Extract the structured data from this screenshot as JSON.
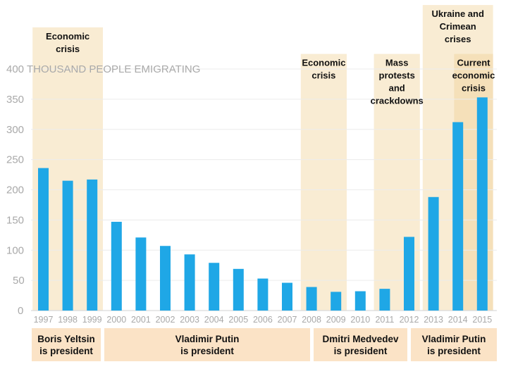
{
  "chart_data": {
    "type": "bar",
    "title": "",
    "ylabel": "THOUSAND PEOPLE EMIGRATING",
    "xlabel": "",
    "ylim": [
      0,
      400
    ],
    "yticks": [
      0,
      50,
      100,
      150,
      200,
      250,
      300,
      350,
      400
    ],
    "grid": true,
    "categories": [
      "1997",
      "1998",
      "1999",
      "2000",
      "2001",
      "2002",
      "2003",
      "2004",
      "2005",
      "2006",
      "2007",
      "2008",
      "2009",
      "2010",
      "2011",
      "2012",
      "2013",
      "2014",
      "2015"
    ],
    "values": [
      236,
      215,
      217,
      147,
      121,
      107,
      93,
      79,
      69,
      53,
      46,
      39,
      31,
      32,
      36,
      122,
      188,
      312,
      353
    ],
    "bar_color": "#1fa7e6",
    "annotations": [
      {
        "label": [
          "Economic",
          "crisis"
        ],
        "years": [
          "1997",
          "1999"
        ],
        "top_value": 469
      },
      {
        "label": [
          "Economic",
          "crisis"
        ],
        "years": [
          "2008",
          "2009"
        ],
        "top_value": 425
      },
      {
        "label": [
          "Mass",
          "protests",
          "and",
          "crackdowns"
        ],
        "years": [
          "2011",
          "2012"
        ],
        "top_value": 425
      },
      {
        "label": [
          "Ukraine and",
          "Crimean",
          "crises"
        ],
        "years": [
          "2013",
          "2015"
        ],
        "top_value": 506
      },
      {
        "label": [
          "Current",
          "economic",
          "crisis"
        ],
        "years": [
          "2014",
          "2015"
        ],
        "top_value": 425,
        "darker": true
      }
    ],
    "presidencies": [
      {
        "label": [
          "Boris Yeltsin",
          "is president"
        ],
        "years": [
          "1997",
          "1999"
        ]
      },
      {
        "label": [
          "Vladimir Putin",
          "is president"
        ],
        "years": [
          "2000",
          "2008"
        ]
      },
      {
        "label": [
          "Dmitri Medvedev",
          "is president"
        ],
        "years": [
          "2008",
          "2012"
        ]
      },
      {
        "label": [
          "Vladimir Putin",
          "is president"
        ],
        "years": [
          "2012",
          "2015"
        ]
      }
    ],
    "shade_color": "#f9ecd3",
    "presidency_color": "#fbe3c6"
  }
}
